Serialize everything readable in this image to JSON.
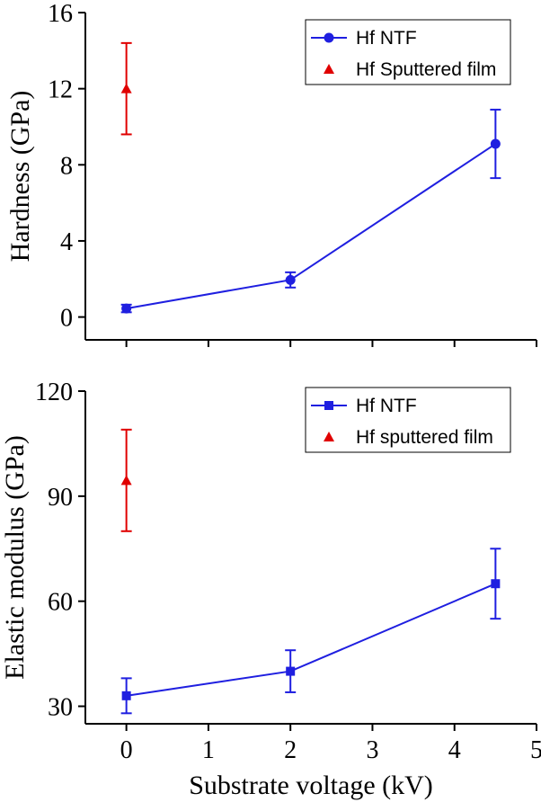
{
  "chart_data": [
    {
      "type": "line",
      "title": "",
      "xlabel": "",
      "ylabel": "Hardness (GPa)",
      "ylim": [
        -1.2,
        16
      ],
      "xlim": [
        -0.5,
        5
      ],
      "y_ticks": [
        0,
        4,
        8,
        12,
        16
      ],
      "y_tick_labels": [
        "0",
        "4",
        "8",
        "12",
        "16"
      ],
      "x_ticks": [
        0,
        1,
        2,
        3,
        4,
        5
      ],
      "x_tick_labels": [],
      "legend_position": "top-right",
      "grid": false,
      "series": [
        {
          "name": "Hf NTF",
          "color": "#1f1fe0",
          "marker": "circle",
          "connected": true,
          "points": [
            {
              "x": 0,
              "y": 0.45,
              "err": 0.2
            },
            {
              "x": 2,
              "y": 1.95,
              "err": 0.4
            },
            {
              "x": 4.5,
              "y": 9.1,
              "err": 1.8
            }
          ]
        },
        {
          "name": "Hf Sputtered film",
          "color": "#e00000",
          "marker": "triangle",
          "connected": false,
          "points": [
            {
              "x": 0,
              "y": 12.0,
              "err": 2.4
            }
          ]
        }
      ]
    },
    {
      "type": "line",
      "title": "",
      "xlabel": "Substrate voltage (kV)",
      "ylabel": "Elastic modulus (GPa)",
      "ylim": [
        25,
        120
      ],
      "xlim": [
        -0.5,
        5
      ],
      "y_ticks": [
        30,
        60,
        90,
        120
      ],
      "y_tick_labels": [
        "30",
        "60",
        "90",
        "120"
      ],
      "x_ticks": [
        0,
        1,
        2,
        3,
        4,
        5
      ],
      "x_tick_labels": [
        "0",
        "1",
        "2",
        "3",
        "4",
        "5"
      ],
      "legend_position": "top-right",
      "grid": false,
      "series": [
        {
          "name": "Hf NTF",
          "color": "#1f1fe0",
          "marker": "square",
          "connected": true,
          "points": [
            {
              "x": 0,
              "y": 33,
              "err": 5
            },
            {
              "x": 2,
              "y": 40,
              "err": 6
            },
            {
              "x": 4.5,
              "y": 65,
              "err": 10
            }
          ]
        },
        {
          "name": "Hf sputtered film",
          "color": "#e00000",
          "marker": "triangle",
          "connected": false,
          "points": [
            {
              "x": 0,
              "y": 94.5,
              "err": 14.5
            }
          ]
        }
      ]
    }
  ]
}
